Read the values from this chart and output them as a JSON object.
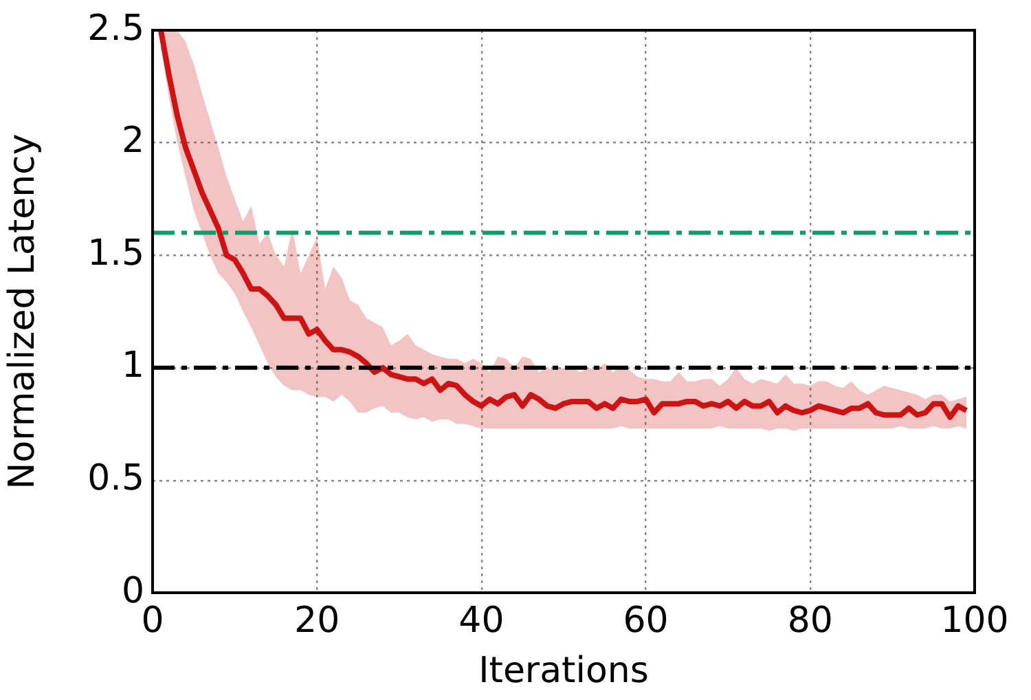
{
  "chart_data": {
    "type": "line",
    "xlabel": "Iterations",
    "ylabel": "Normalized Latency",
    "xlim": [
      0,
      100
    ],
    "xticks": [
      0,
      20,
      40,
      60,
      80,
      100
    ],
    "ylim": [
      0,
      2.5
    ],
    "yticks": [
      0,
      0.5,
      1,
      1.5,
      2,
      2.5
    ],
    "grid": true,
    "legend": false,
    "marker": "none",
    "line_style": "solid",
    "x": [
      1,
      2,
      3,
      4,
      5,
      6,
      7,
      8,
      9,
      10,
      11,
      12,
      13,
      14,
      15,
      16,
      17,
      18,
      19,
      20,
      21,
      22,
      23,
      24,
      25,
      26,
      27,
      28,
      29,
      30,
      31,
      32,
      33,
      34,
      35,
      36,
      37,
      38,
      39,
      40,
      41,
      42,
      43,
      44,
      45,
      46,
      47,
      48,
      49,
      50,
      51,
      52,
      53,
      54,
      55,
      56,
      57,
      58,
      59,
      60,
      61,
      62,
      63,
      64,
      65,
      66,
      67,
      68,
      69,
      70,
      71,
      72,
      73,
      74,
      75,
      76,
      77,
      78,
      79,
      80,
      81,
      82,
      83,
      84,
      85,
      86,
      87,
      88,
      89,
      90,
      91,
      92,
      93,
      94,
      95,
      96,
      97,
      98,
      99
    ],
    "series": [
      {
        "color": "#cc1414",
        "values": [
          2.5,
          2.3,
          2.12,
          1.98,
          1.88,
          1.78,
          1.7,
          1.62,
          1.5,
          1.48,
          1.42,
          1.35,
          1.35,
          1.32,
          1.28,
          1.22,
          1.22,
          1.22,
          1.15,
          1.17,
          1.12,
          1.08,
          1.08,
          1.07,
          1.05,
          1.02,
          0.98,
          1.0,
          0.97,
          0.96,
          0.95,
          0.95,
          0.93,
          0.95,
          0.9,
          0.93,
          0.92,
          0.88,
          0.85,
          0.83,
          0.86,
          0.84,
          0.87,
          0.88,
          0.83,
          0.88,
          0.86,
          0.83,
          0.82,
          0.84,
          0.85,
          0.85,
          0.85,
          0.82,
          0.84,
          0.82,
          0.86,
          0.85,
          0.85,
          0.86,
          0.8,
          0.84,
          0.84,
          0.84,
          0.85,
          0.85,
          0.83,
          0.84,
          0.83,
          0.85,
          0.82,
          0.85,
          0.83,
          0.83,
          0.85,
          0.8,
          0.83,
          0.81,
          0.8,
          0.81,
          0.83,
          0.82,
          0.81,
          0.8,
          0.82,
          0.82,
          0.84,
          0.8,
          0.79,
          0.79,
          0.79,
          0.82,
          0.79,
          0.8,
          0.84,
          0.84,
          0.78,
          0.83,
          0.81
        ],
        "lower": [
          2.42,
          2.2,
          2.0,
          1.85,
          1.7,
          1.6,
          1.5,
          1.42,
          1.38,
          1.33,
          1.25,
          1.18,
          1.1,
          1.02,
          0.96,
          0.92,
          0.9,
          0.9,
          0.88,
          0.87,
          0.87,
          0.85,
          0.88,
          0.85,
          0.8,
          0.8,
          0.82,
          0.83,
          0.8,
          0.8,
          0.78,
          0.77,
          0.78,
          0.76,
          0.77,
          0.77,
          0.75,
          0.75,
          0.74,
          0.73,
          0.73,
          0.73,
          0.73,
          0.73,
          0.73,
          0.73,
          0.73,
          0.73,
          0.73,
          0.73,
          0.73,
          0.73,
          0.73,
          0.73,
          0.73,
          0.73,
          0.74,
          0.73,
          0.73,
          0.73,
          0.73,
          0.73,
          0.73,
          0.73,
          0.73,
          0.73,
          0.73,
          0.73,
          0.74,
          0.73,
          0.73,
          0.73,
          0.73,
          0.73,
          0.72,
          0.73,
          0.73,
          0.72,
          0.73,
          0.73,
          0.73,
          0.73,
          0.73,
          0.73,
          0.73,
          0.73,
          0.73,
          0.73,
          0.73,
          0.73,
          0.74,
          0.73,
          0.73,
          0.73,
          0.74,
          0.73,
          0.73,
          0.74,
          0.73
        ],
        "upper": [
          2.5,
          2.5,
          2.5,
          2.45,
          2.35,
          2.22,
          2.1,
          1.98,
          1.85,
          1.75,
          1.65,
          1.72,
          1.55,
          1.6,
          1.5,
          1.45,
          1.62,
          1.42,
          1.5,
          1.58,
          1.35,
          1.45,
          1.4,
          1.3,
          1.28,
          1.22,
          1.2,
          1.18,
          1.1,
          1.12,
          1.15,
          1.1,
          1.08,
          1.06,
          1.05,
          1.04,
          1.04,
          1.02,
          1.04,
          1.02,
          0.98,
          1.05,
          1.04,
          1.0,
          1.05,
          1.04,
          0.98,
          1.0,
          0.99,
          1.0,
          1.0,
          0.98,
          1.0,
          0.99,
          1.02,
          0.98,
          1.0,
          0.99,
          0.96,
          0.95,
          0.95,
          0.94,
          0.94,
          0.98,
          0.94,
          0.94,
          0.95,
          0.95,
          0.92,
          0.95,
          1.0,
          0.95,
          0.93,
          0.95,
          0.94,
          0.93,
          0.97,
          0.93,
          0.93,
          0.92,
          0.94,
          0.94,
          0.92,
          0.91,
          0.94,
          0.9,
          0.88,
          0.9,
          0.92,
          0.91,
          0.9,
          0.89,
          0.88,
          0.86,
          0.88,
          0.88,
          0.85,
          0.86,
          0.87
        ]
      }
    ],
    "ref_lines": [
      {
        "axis": "y",
        "value": 1.6,
        "color": "#109a6e",
        "line_style": "dashed"
      },
      {
        "axis": "y",
        "value": 1,
        "color": "#000000",
        "line_style": "dashed"
      }
    ]
  }
}
